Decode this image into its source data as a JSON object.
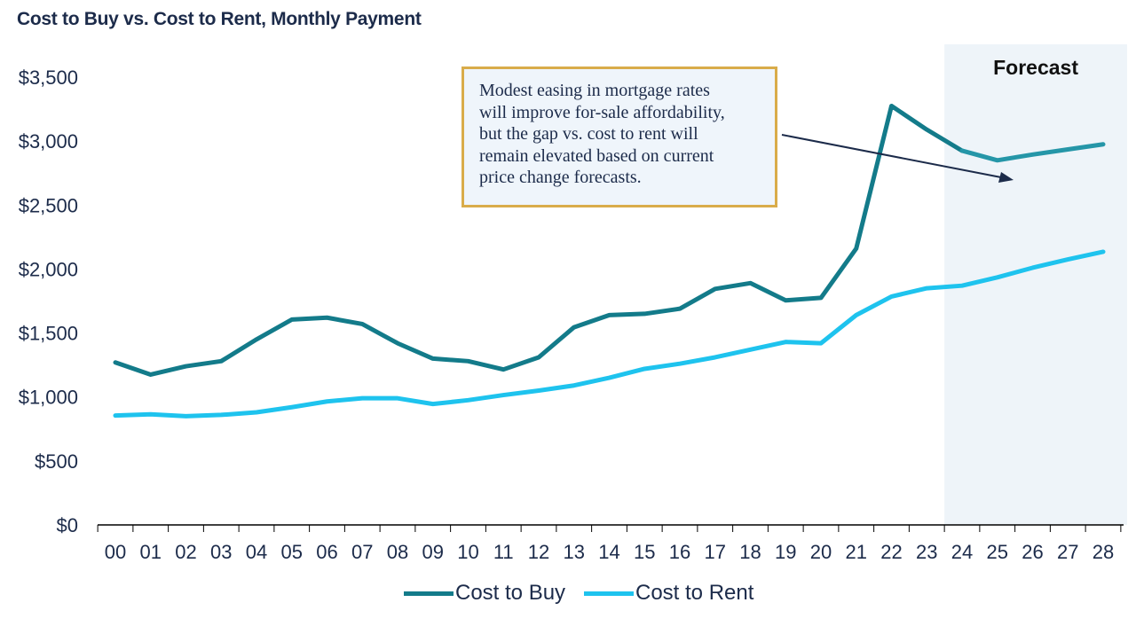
{
  "chart_data": {
    "type": "line",
    "title": "Cost to Buy vs. Cost to Rent, Monthly Payment",
    "categories": [
      "00",
      "01",
      "02",
      "03",
      "04",
      "05",
      "06",
      "07",
      "08",
      "09",
      "10",
      "11",
      "12",
      "13",
      "14",
      "15",
      "16",
      "17",
      "18",
      "19",
      "20",
      "21",
      "22",
      "23",
      "24",
      "25",
      "26",
      "27",
      "28"
    ],
    "ylim": [
      0,
      3500
    ],
    "yticks": [
      0,
      500,
      1000,
      1500,
      2000,
      2500,
      3000,
      3500
    ],
    "ytick_labels": [
      "$0",
      "$500",
      "$1,000",
      "$1,500",
      "$2,000",
      "$2,500",
      "$3,000",
      "$3,500"
    ],
    "grid": false,
    "legend_position": "bottom",
    "forecast_label": "Forecast",
    "forecast_start": "24",
    "series": [
      {
        "name": "Cost to Buy",
        "color": "#137b8a",
        "forecast_color": "#2596a8",
        "values": [
          1270,
          1175,
          1240,
          1280,
          1450,
          1605,
          1620,
          1570,
          1420,
          1300,
          1280,
          1215,
          1310,
          1545,
          1640,
          1650,
          1690,
          1845,
          1890,
          1755,
          1775,
          2160,
          3275,
          3090,
          2925,
          2850,
          2895,
          2935,
          2975
        ]
      },
      {
        "name": "Cost to Rent",
        "color": "#1ec3ee",
        "values": [
          855,
          865,
          850,
          860,
          880,
          920,
          965,
          990,
          990,
          945,
          975,
          1015,
          1050,
          1090,
          1150,
          1220,
          1260,
          1310,
          1370,
          1430,
          1420,
          1640,
          1785,
          1850,
          1870,
          1935,
          2010,
          2075,
          2135
        ]
      }
    ],
    "annotation": {
      "lines": [
        "Modest easing in mortgage rates",
        "will improve for-sale affordability,",
        "but the gap vs. cost to rent will",
        "remain elevated based on current",
        "price change forecasts."
      ],
      "border_color": "#d9ac4a",
      "fill_color": "#eff5fb",
      "arrow_color": "#1c2b4a"
    },
    "forecast_shade_color": "#eef4f9",
    "axis_label_color": "#1c2b4a"
  }
}
